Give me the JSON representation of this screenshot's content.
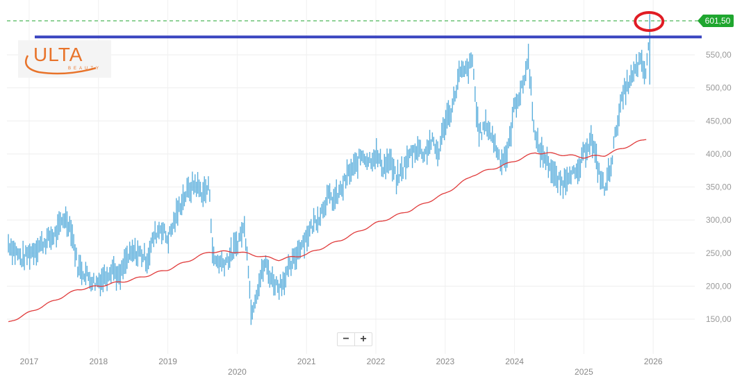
{
  "colors": {
    "bars": "#5aaedc",
    "ma": "#e03a3a",
    "resistance": "#3a45c0",
    "last_price": "#1fa62f",
    "annotation": "#e01c24",
    "logo": "#e8732a"
  },
  "logo": {
    "text": "ULTA",
    "sub": "BEAUTY"
  },
  "controls": {
    "zoom_out": "−",
    "zoom_in": "+"
  },
  "chart_data": {
    "type": "bar",
    "title": "",
    "ylim": [
      120,
      620
    ],
    "xlim": [
      2016.7,
      2026.75
    ],
    "yticks": [
      150,
      200,
      250,
      300,
      350,
      400,
      450,
      500,
      550
    ],
    "ytick_labels": [
      "150,00",
      "200,00",
      "250,00",
      "300,00",
      "350,00",
      "400,00",
      "450,00",
      "500,00",
      "550,00"
    ],
    "xticks": [
      2017,
      2018,
      2019,
      2020,
      2021,
      2022,
      2023,
      2024,
      2025,
      2026
    ],
    "xtick_labels": [
      "2017",
      "2018",
      "2019",
      "2020",
      "2021",
      "2022",
      "2023",
      "2024",
      "2025",
      "2026"
    ],
    "last_price": 601.5,
    "last_price_label": "601,50",
    "resistance_level": 577,
    "grid": true,
    "price": [
      [
        2016.7,
        265
      ],
      [
        2016.9,
        240
      ],
      [
        2017.0,
        250
      ],
      [
        2017.2,
        265
      ],
      [
        2017.4,
        280
      ],
      [
        2017.5,
        305
      ],
      [
        2017.6,
        290
      ],
      [
        2017.7,
        230
      ],
      [
        2017.85,
        215
      ],
      [
        2017.95,
        205
      ],
      [
        2018.1,
        215
      ],
      [
        2018.2,
        230
      ],
      [
        2018.3,
        210
      ],
      [
        2018.4,
        240
      ],
      [
        2018.5,
        250
      ],
      [
        2018.6,
        250
      ],
      [
        2018.7,
        240
      ],
      [
        2018.8,
        275
      ],
      [
        2018.9,
        290
      ],
      [
        2019.0,
        270
      ],
      [
        2019.1,
        300
      ],
      [
        2019.2,
        330
      ],
      [
        2019.3,
        345
      ],
      [
        2019.4,
        355
      ],
      [
        2019.5,
        340
      ],
      [
        2019.6,
        350
      ],
      [
        2019.65,
        240
      ],
      [
        2019.8,
        235
      ],
      [
        2019.9,
        245
      ],
      [
        2020.0,
        265
      ],
      [
        2020.1,
        290
      ],
      [
        2020.15,
        250
      ],
      [
        2020.2,
        160
      ],
      [
        2020.3,
        200
      ],
      [
        2020.4,
        235
      ],
      [
        2020.5,
        210
      ],
      [
        2020.6,
        200
      ],
      [
        2020.7,
        215
      ],
      [
        2020.8,
        235
      ],
      [
        2020.9,
        260
      ],
      [
        2021.0,
        275
      ],
      [
        2021.1,
        295
      ],
      [
        2021.2,
        310
      ],
      [
        2021.3,
        335
      ],
      [
        2021.4,
        330
      ],
      [
        2021.5,
        345
      ],
      [
        2021.6,
        370
      ],
      [
        2021.7,
        380
      ],
      [
        2021.8,
        400
      ],
      [
        2021.9,
        390
      ],
      [
        2022.0,
        400
      ],
      [
        2022.1,
        380
      ],
      [
        2022.2,
        390
      ],
      [
        2022.3,
        360
      ],
      [
        2022.4,
        380
      ],
      [
        2022.5,
        400
      ],
      [
        2022.6,
        410
      ],
      [
        2022.7,
        400
      ],
      [
        2022.8,
        420
      ],
      [
        2022.9,
        400
      ],
      [
        2023.0,
        450
      ],
      [
        2023.1,
        470
      ],
      [
        2023.2,
        520
      ],
      [
        2023.3,
        525
      ],
      [
        2023.4,
        540
      ],
      [
        2023.45,
        460
      ],
      [
        2023.5,
        430
      ],
      [
        2023.6,
        445
      ],
      [
        2023.7,
        420
      ],
      [
        2023.8,
        390
      ],
      [
        2023.9,
        400
      ],
      [
        2024.0,
        475
      ],
      [
        2024.1,
        495
      ],
      [
        2024.2,
        545
      ],
      [
        2024.3,
        420
      ],
      [
        2024.4,
        400
      ],
      [
        2024.5,
        385
      ],
      [
        2024.6,
        360
      ],
      [
        2024.7,
        355
      ],
      [
        2024.8,
        375
      ],
      [
        2024.9,
        365
      ],
      [
        2025.0,
        400
      ],
      [
        2025.1,
        425
      ],
      [
        2025.2,
        380
      ],
      [
        2025.3,
        345
      ],
      [
        2025.4,
        390
      ],
      [
        2025.5,
        460
      ],
      [
        2025.6,
        500
      ],
      [
        2025.7,
        515
      ],
      [
        2025.8,
        540
      ],
      [
        2025.85,
        530
      ],
      [
        2025.9,
        520
      ],
      [
        2025.95,
        590
      ]
    ],
    "moving_average": [
      [
        2016.7,
        145
      ],
      [
        2017.7,
        195
      ],
      [
        2018.0,
        200
      ],
      [
        2018.5,
        210
      ],
      [
        2019.0,
        225
      ],
      [
        2019.6,
        252
      ],
      [
        2020.0,
        252
      ],
      [
        2020.6,
        240
      ],
      [
        2021.0,
        248
      ],
      [
        2021.5,
        270
      ],
      [
        2022.0,
        295
      ],
      [
        2022.5,
        315
      ],
      [
        2023.0,
        340
      ],
      [
        2023.4,
        368
      ],
      [
        2023.9,
        385
      ],
      [
        2024.3,
        402
      ],
      [
        2024.6,
        400
      ],
      [
        2025.0,
        395
      ],
      [
        2025.3,
        398
      ],
      [
        2025.9,
        423
      ]
    ]
  }
}
